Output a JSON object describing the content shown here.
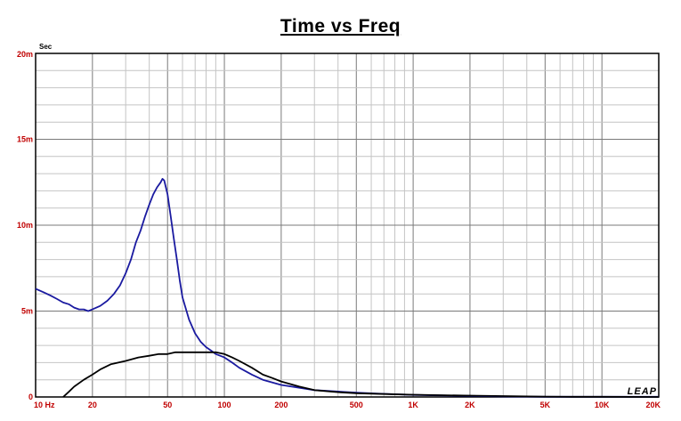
{
  "chart_data": {
    "type": "line",
    "title": "Time vs Freq",
    "ylabel": "Sec",
    "xscale": "log",
    "xlim": [
      10,
      20000
    ],
    "ylim": [
      0,
      0.02
    ],
    "x_ticks": [
      10,
      20,
      50,
      100,
      200,
      500,
      1000,
      2000,
      5000,
      10000,
      20000
    ],
    "x_tick_labels": [
      "10 Hz",
      "20",
      "50",
      "100",
      "200",
      "500",
      "1K",
      "2K",
      "5K",
      "10K",
      "20K"
    ],
    "y_ticks": [
      0,
      0.005,
      0.01,
      0.015,
      0.02
    ],
    "y_tick_labels": [
      "0",
      "5m",
      "10m",
      "15m",
      "20m"
    ],
    "grid": true,
    "series": [
      {
        "color": "#1a1aa0",
        "x": [
          10,
          11,
          12,
          13,
          14,
          15,
          16,
          17,
          18,
          19,
          20,
          22,
          24,
          26,
          28,
          30,
          32,
          34,
          36,
          38,
          40,
          42,
          44,
          46,
          47,
          48,
          50,
          52,
          54,
          56,
          58,
          60,
          65,
          70,
          75,
          80,
          85,
          90,
          95,
          100,
          110,
          120,
          140,
          160,
          200,
          300,
          500,
          700,
          1000,
          2000,
          3000,
          4000,
          5000,
          7000,
          10000,
          20000
        ],
        "y": [
          0.0063,
          0.0061,
          0.0059,
          0.0057,
          0.0055,
          0.0054,
          0.0052,
          0.0051,
          0.0051,
          0.005,
          0.0051,
          0.0053,
          0.0056,
          0.006,
          0.0065,
          0.0072,
          0.008,
          0.009,
          0.0097,
          0.0105,
          0.0112,
          0.0118,
          0.0122,
          0.0125,
          0.0127,
          0.0126,
          0.0118,
          0.0105,
          0.0092,
          0.008,
          0.0068,
          0.0058,
          0.0045,
          0.0037,
          0.0032,
          0.0029,
          0.0027,
          0.0025,
          0.0024,
          0.0023,
          0.002,
          0.0017,
          0.0013,
          0.001,
          0.0007,
          0.0004,
          0.00025,
          0.00018,
          0.00012,
          6e-05,
          3e-05,
          2e-05,
          1e-05,
          1e-05,
          1e-05,
          1e-05
        ]
      },
      {
        "color": "#000000",
        "x": [
          14,
          15,
          16,
          18,
          20,
          22,
          25,
          30,
          35,
          40,
          45,
          50,
          55,
          60,
          65,
          70,
          75,
          80,
          85,
          90,
          100,
          110,
          120,
          140,
          160,
          180,
          200,
          250,
          300,
          400,
          500,
          700,
          1000,
          1500,
          2000,
          3000,
          5000,
          7000,
          10000,
          20000
        ],
        "y": [
          0.0,
          0.0003,
          0.0006,
          0.001,
          0.0013,
          0.0016,
          0.0019,
          0.0021,
          0.0023,
          0.0024,
          0.0025,
          0.0025,
          0.0026,
          0.0026,
          0.0026,
          0.0026,
          0.0026,
          0.0026,
          0.0026,
          0.0026,
          0.0025,
          0.0023,
          0.0021,
          0.0017,
          0.0013,
          0.0011,
          0.0009,
          0.0006,
          0.0004,
          0.00028,
          0.00022,
          0.00017,
          0.00013,
          0.0001,
          8e-05,
          5e-05,
          2e-05,
          1e-05,
          1e-05,
          0.0
        ]
      }
    ]
  },
  "branding": {
    "logo": "LEAP"
  }
}
